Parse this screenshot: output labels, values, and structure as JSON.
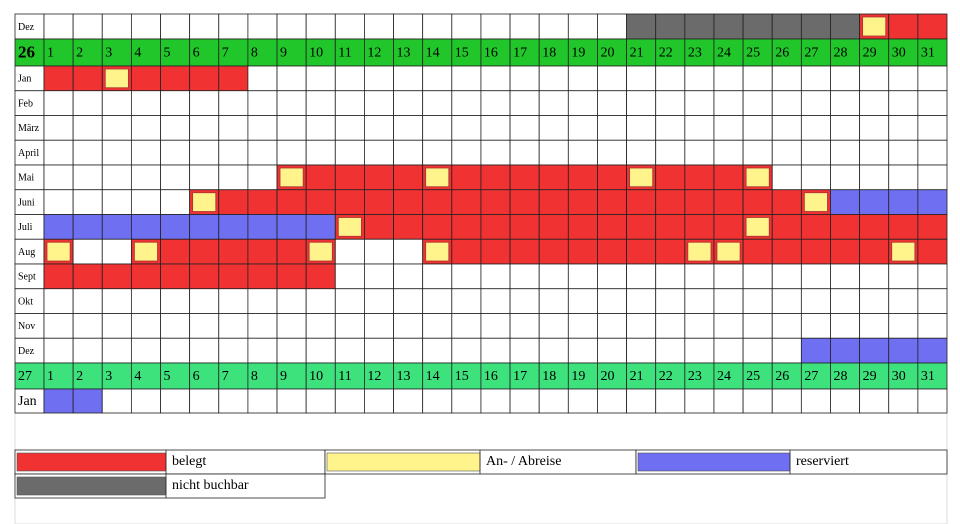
{
  "top_row": {
    "label": "Dez"
  },
  "header_2026": {
    "label": "26",
    "days": [
      1,
      2,
      3,
      4,
      5,
      6,
      7,
      8,
      9,
      10,
      11,
      12,
      13,
      14,
      15,
      16,
      17,
      18,
      19,
      20,
      21,
      22,
      23,
      24,
      25,
      26,
      27,
      28,
      29,
      30,
      31
    ]
  },
  "months_2026": [
    "Jan",
    "Feb",
    "März",
    "April",
    "Mai",
    "Juni",
    "Juli",
    "Aug",
    "Sept",
    "Okt",
    "Nov",
    "Dez"
  ],
  "header_2027": {
    "label": "27",
    "days": [
      1,
      2,
      3,
      4,
      5,
      6,
      7,
      8,
      9,
      10,
      11,
      12,
      13,
      14,
      15,
      16,
      17,
      18,
      19,
      20,
      21,
      22,
      23,
      24,
      25,
      26,
      27,
      28,
      29,
      30,
      31
    ]
  },
  "months_2027": [
    "Jan"
  ],
  "legend": [
    "belegt",
    "An- / Abreise",
    "reserviert",
    "nicht buchbar"
  ]
}
